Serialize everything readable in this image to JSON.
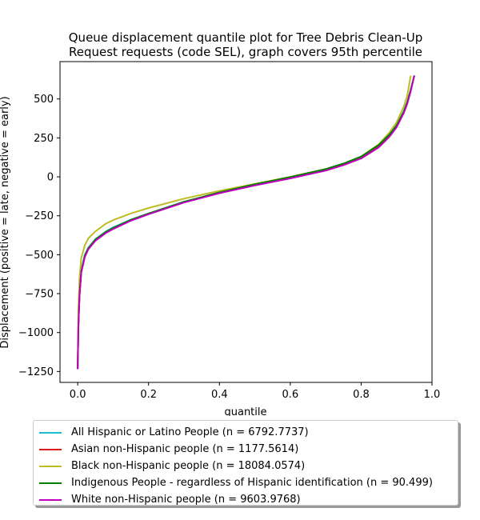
{
  "chart_data": {
    "type": "line",
    "title_lines": [
      "Queue displacement quantile plot for Tree Debris Clean-Up",
      "Request  requests (code SEL), graph covers 95th percentile"
    ],
    "xlabel": "quantile",
    "ylabel": "Displacement (positive = late, negative = early)",
    "xlim": [
      -0.05,
      1.0
    ],
    "ylim": [
      -1320,
      740
    ],
    "xticks": [
      0.0,
      0.2,
      0.4,
      0.6,
      0.8,
      1.0
    ],
    "xtick_labels": [
      "0.0",
      "0.2",
      "0.4",
      "0.6",
      "0.8",
      "1.0"
    ],
    "yticks": [
      500,
      250,
      0,
      -250,
      -500,
      -750,
      -1000,
      -1250
    ],
    "ytick_labels": [
      "500",
      "250",
      "0",
      "−250",
      "−500",
      "−750",
      "−1000",
      "−1250"
    ],
    "legend_position": "below plot",
    "series": [
      {
        "name": "All Hispanic or Latino People (n = 6792.7737)",
        "color": "#17becf",
        "x": [
          0.0,
          0.002,
          0.005,
          0.01,
          0.02,
          0.03,
          0.05,
          0.08,
          0.1,
          0.15,
          0.2,
          0.3,
          0.4,
          0.5,
          0.6,
          0.7,
          0.75,
          0.8,
          0.85,
          0.88,
          0.9,
          0.92,
          0.93,
          0.94,
          0.95
        ],
        "y": [
          -1230,
          -950,
          -750,
          -600,
          -500,
          -455,
          -400,
          -350,
          -325,
          -275,
          -235,
          -160,
          -100,
          -50,
          -5,
          45,
          80,
          125,
          200,
          270,
          330,
          420,
          480,
          560,
          650
        ]
      },
      {
        "name": "Asian non-Hispanic people (n = 1177.5614)",
        "color": "#e31a1c",
        "x": [
          0.0,
          0.002,
          0.005,
          0.01,
          0.02,
          0.03,
          0.05,
          0.08,
          0.1,
          0.15,
          0.2,
          0.3,
          0.4,
          0.5,
          0.6,
          0.7,
          0.75,
          0.8,
          0.85,
          0.88,
          0.9,
          0.92,
          0.93,
          0.94,
          0.95
        ],
        "y": [
          -1235,
          -960,
          -760,
          -610,
          -510,
          -460,
          -405,
          -355,
          -330,
          -278,
          -238,
          -163,
          -103,
          -52,
          -8,
          42,
          77,
          120,
          195,
          265,
          325,
          415,
          475,
          555,
          650
        ]
      },
      {
        "name": "Black non-Hispanic people (n = 18084.0574)",
        "color": "#bcbd22",
        "x": [
          0.0,
          0.002,
          0.005,
          0.01,
          0.02,
          0.03,
          0.05,
          0.08,
          0.1,
          0.15,
          0.2,
          0.3,
          0.4,
          0.5,
          0.6,
          0.7,
          0.75,
          0.8,
          0.85,
          0.88,
          0.9,
          0.92,
          0.93,
          0.94
        ],
        "y": [
          -1200,
          -850,
          -650,
          -520,
          -440,
          -395,
          -350,
          -300,
          -278,
          -235,
          -200,
          -140,
          -90,
          -45,
          0,
          50,
          85,
          130,
          210,
          285,
          350,
          450,
          520,
          650
        ]
      },
      {
        "name": "Indigenous People - regardless of Hispanic identification (n = 90.499)",
        "color": "#008000",
        "x": [
          0.0,
          0.002,
          0.005,
          0.01,
          0.02,
          0.03,
          0.05,
          0.08,
          0.1,
          0.15,
          0.2,
          0.3,
          0.4,
          0.5,
          0.6,
          0.7,
          0.75,
          0.8,
          0.85,
          0.88,
          0.9,
          0.92,
          0.93,
          0.94,
          0.95
        ],
        "y": [
          -1230,
          -955,
          -755,
          -605,
          -505,
          -458,
          -402,
          -352,
          -328,
          -276,
          -236,
          -160,
          -100,
          -48,
          -2,
          50,
          85,
          130,
          205,
          272,
          330,
          418,
          478,
          558,
          650
        ]
      },
      {
        "name": "White non-Hispanic people (n = 9603.9768)",
        "color": "#c000c0",
        "x": [
          0.0,
          0.002,
          0.005,
          0.01,
          0.02,
          0.03,
          0.05,
          0.08,
          0.1,
          0.15,
          0.2,
          0.3,
          0.4,
          0.5,
          0.6,
          0.7,
          0.75,
          0.8,
          0.85,
          0.88,
          0.9,
          0.92,
          0.93,
          0.94,
          0.95
        ],
        "y": [
          -1235,
          -965,
          -765,
          -615,
          -515,
          -465,
          -410,
          -360,
          -335,
          -282,
          -240,
          -165,
          -105,
          -55,
          -10,
          40,
          75,
          118,
          190,
          258,
          318,
          408,
          468,
          550,
          650
        ]
      }
    ]
  }
}
